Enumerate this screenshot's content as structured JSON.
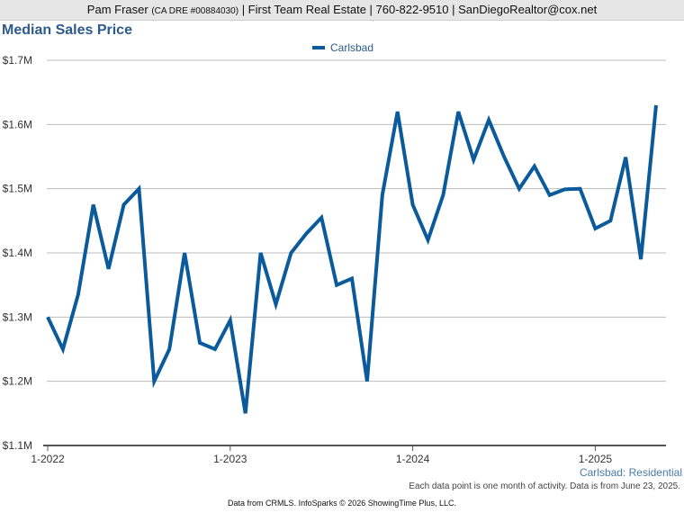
{
  "banner": {
    "name": "Pam Fraser",
    "license": "(CA DRE #00884030)",
    "rest": "| First Team Real Estate | 760-822-9510 | SanDiegoRealtor@cox.net"
  },
  "market_label": "Carlsbad: Residential",
  "note": "Each data point is one month of activity. Data is from June 23, 2025.",
  "footer": "Data from CRMLS. InfoSparks © 2026 ShowingTime Plus, LLC.",
  "colors": {
    "series": "#0a5a9c",
    "title": "#2d5a8a",
    "grid": "#bdbdbd",
    "axis": "#555555"
  },
  "chart_data": {
    "type": "line",
    "title": "Median Sales Price",
    "xlabel": "",
    "ylabel": "",
    "ylim": [
      1.1,
      1.7
    ],
    "y_unit": "$M",
    "yticks": [
      {
        "value": 1.1,
        "label": "$1.1M"
      },
      {
        "value": 1.2,
        "label": "$1.2M"
      },
      {
        "value": 1.3,
        "label": "$1.3M"
      },
      {
        "value": 1.4,
        "label": "$1.4M"
      },
      {
        "value": 1.5,
        "label": "$1.5M"
      },
      {
        "value": 1.6,
        "label": "$1.6M"
      },
      {
        "value": 1.7,
        "label": "$1.7M"
      }
    ],
    "xlim": [
      "2022-01",
      "2025-05"
    ],
    "xticks": [
      {
        "value": "2022-01",
        "label": "1-2022"
      },
      {
        "value": "2023-01",
        "label": "1-2023"
      },
      {
        "value": "2024-01",
        "label": "1-2024"
      },
      {
        "value": "2025-01",
        "label": "1-2025"
      }
    ],
    "grid": true,
    "legend_position": "top-center",
    "series": [
      {
        "name": "Carlsbad",
        "points": [
          {
            "x": "2022-01",
            "y": 1.3
          },
          {
            "x": "2022-02",
            "y": 1.25
          },
          {
            "x": "2022-03",
            "y": 1.335
          },
          {
            "x": "2022-04",
            "y": 1.475
          },
          {
            "x": "2022-05",
            "y": 1.375
          },
          {
            "x": "2022-06",
            "y": 1.475
          },
          {
            "x": "2022-07",
            "y": 1.5
          },
          {
            "x": "2022-08",
            "y": 1.2
          },
          {
            "x": "2022-09",
            "y": 1.25
          },
          {
            "x": "2022-10",
            "y": 1.4
          },
          {
            "x": "2022-11",
            "y": 1.26
          },
          {
            "x": "2022-12",
            "y": 1.25
          },
          {
            "x": "2023-01",
            "y": 1.295
          },
          {
            "x": "2023-02",
            "y": 1.15
          },
          {
            "x": "2023-03",
            "y": 1.4
          },
          {
            "x": "2023-04",
            "y": 1.32
          },
          {
            "x": "2023-05",
            "y": 1.4
          },
          {
            "x": "2023-06",
            "y": 1.43
          },
          {
            "x": "2023-07",
            "y": 1.455
          },
          {
            "x": "2023-08",
            "y": 1.35
          },
          {
            "x": "2023-09",
            "y": 1.36
          },
          {
            "x": "2023-10",
            "y": 1.2
          },
          {
            "x": "2023-11",
            "y": 1.49
          },
          {
            "x": "2023-12",
            "y": 1.62
          },
          {
            "x": "2024-01",
            "y": 1.475
          },
          {
            "x": "2024-02",
            "y": 1.42
          },
          {
            "x": "2024-03",
            "y": 1.49
          },
          {
            "x": "2024-04",
            "y": 1.62
          },
          {
            "x": "2024-05",
            "y": 1.545
          },
          {
            "x": "2024-06",
            "y": 1.607
          },
          {
            "x": "2024-07",
            "y": 1.55
          },
          {
            "x": "2024-08",
            "y": 1.5
          },
          {
            "x": "2024-09",
            "y": 1.535
          },
          {
            "x": "2024-10",
            "y": 1.49
          },
          {
            "x": "2024-11",
            "y": 1.499
          },
          {
            "x": "2024-12",
            "y": 1.5
          },
          {
            "x": "2025-01",
            "y": 1.438
          },
          {
            "x": "2025-02",
            "y": 1.45
          },
          {
            "x": "2025-03",
            "y": 1.549
          },
          {
            "x": "2025-04",
            "y": 1.39
          },
          {
            "x": "2025-05",
            "y": 1.63
          }
        ]
      }
    ]
  }
}
